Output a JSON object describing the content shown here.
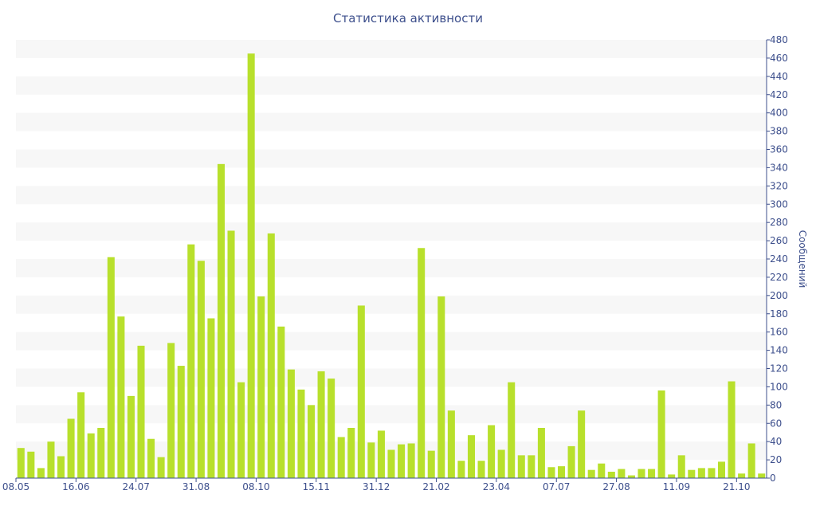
{
  "chart_data": {
    "type": "bar",
    "title": "Статистика активности",
    "ylabel": "Сообщений",
    "xlabel": "",
    "ylim": [
      0,
      480
    ],
    "y_ticks": [
      0,
      20,
      40,
      60,
      80,
      100,
      120,
      140,
      160,
      180,
      200,
      220,
      240,
      260,
      280,
      300,
      320,
      340,
      360,
      380,
      400,
      420,
      440,
      460,
      480
    ],
    "y_axis_position": "right",
    "grid": "alternating horizontal bands",
    "bar_color": "#b8e02c",
    "band_color": "#f7f7f7",
    "text_color": "#3d4f8c",
    "x_tick_labels": [
      {
        "label": "08.05",
        "index": 0
      },
      {
        "label": "16.06",
        "index": 6
      },
      {
        "label": "24.07",
        "index": 12
      },
      {
        "label": "31.08",
        "index": 18
      },
      {
        "label": "08.10",
        "index": 24
      },
      {
        "label": "15.11",
        "index": 30
      },
      {
        "label": "31.12",
        "index": 36
      },
      {
        "label": "21.02",
        "index": 42
      },
      {
        "label": "23.04",
        "index": 48
      },
      {
        "label": "07.07",
        "index": 54
      },
      {
        "label": "27.08",
        "index": 60
      },
      {
        "label": "11.09",
        "index": 66
      },
      {
        "label": "21.10",
        "index": 72
      }
    ],
    "values": [
      33,
      29,
      11,
      40,
      24,
      65,
      94,
      49,
      55,
      242,
      177,
      90,
      145,
      43,
      23,
      148,
      123,
      256,
      238,
      175,
      344,
      271,
      105,
      465,
      199,
      268,
      166,
      119,
      97,
      80,
      117,
      109,
      45,
      55,
      189,
      39,
      52,
      31,
      37,
      38,
      252,
      30,
      199,
      74,
      19,
      47,
      19,
      58,
      31,
      105,
      25,
      25,
      55,
      12,
      13,
      35,
      74,
      9,
      16,
      7,
      10,
      3,
      10,
      10,
      96,
      4,
      25,
      9,
      11,
      11,
      18,
      106,
      5,
      38,
      5
    ]
  }
}
